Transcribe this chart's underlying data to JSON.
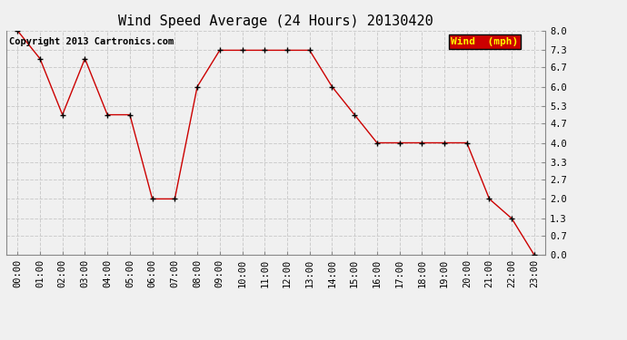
{
  "title": "Wind Speed Average (24 Hours) 20130420",
  "copyright": "Copyright 2013 Cartronics.com",
  "legend_label": "Wind  (mph)",
  "legend_bg": "#cc0000",
  "legend_text_color": "#ffff00",
  "x_labels": [
    "00:00",
    "01:00",
    "02:00",
    "03:00",
    "04:00",
    "05:00",
    "06:00",
    "07:00",
    "08:00",
    "09:00",
    "10:00",
    "11:00",
    "12:00",
    "13:00",
    "14:00",
    "15:00",
    "16:00",
    "17:00",
    "18:00",
    "19:00",
    "20:00",
    "21:00",
    "22:00",
    "23:00"
  ],
  "y_values": [
    8.0,
    7.0,
    5.0,
    7.0,
    5.0,
    5.0,
    2.0,
    2.0,
    6.0,
    7.3,
    7.3,
    7.3,
    7.3,
    7.3,
    6.0,
    5.0,
    4.0,
    4.0,
    4.0,
    4.0,
    4.0,
    2.0,
    1.3,
    0.0
  ],
  "y_ticks": [
    0.0,
    0.7,
    1.3,
    2.0,
    2.7,
    3.3,
    4.0,
    4.7,
    5.3,
    6.0,
    6.7,
    7.3,
    8.0
  ],
  "line_color": "#cc0000",
  "marker": "+",
  "marker_color": "#000000",
  "grid_color": "#cccccc",
  "bg_color": "#f0f0f0",
  "ylim": [
    0.0,
    8.0
  ],
  "title_fontsize": 11,
  "tick_fontsize": 7.5,
  "copyright_fontsize": 7.5
}
